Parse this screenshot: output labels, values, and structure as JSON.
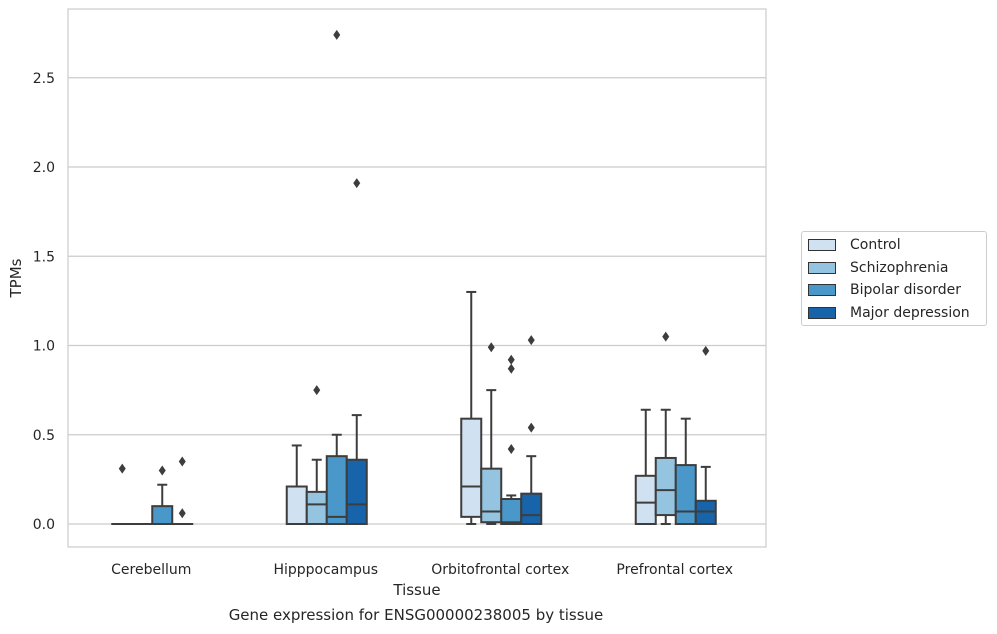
{
  "chart_data": {
    "type": "box",
    "title": "",
    "xlabel": "Tissue",
    "ylabel": "TPMs",
    "caption": "Gene expression for ENSG00000238005 by tissue",
    "ylim": [
      -0.13,
      2.88
    ],
    "yticks": [
      "0.0",
      "0.5",
      "1.0",
      "1.5",
      "2.0",
      "2.5"
    ],
    "ytick_values": [
      0,
      0.5,
      1.0,
      1.5,
      2.0,
      2.5
    ],
    "grid": "horizontal",
    "legend_position": "right",
    "categories": [
      "Cerebellum",
      "Hipppocampus",
      "Orbitofrontal cortex",
      "Prefrontal cortex"
    ],
    "series": [
      {
        "name": "Control",
        "color": "#d0e1f2",
        "boxes": [
          {
            "whislo": 0,
            "q1": 0,
            "med": 0,
            "q3": 0,
            "whishi": 0,
            "fliers": [
              0.31
            ]
          },
          {
            "whislo": 0,
            "q1": 0,
            "med": 0,
            "q3": 0.21,
            "whishi": 0.44,
            "fliers": []
          },
          {
            "whislo": 0,
            "q1": 0.04,
            "med": 0.21,
            "q3": 0.59,
            "whishi": 1.3,
            "fliers": []
          },
          {
            "whislo": 0,
            "q1": 0,
            "med": 0.12,
            "q3": 0.27,
            "whishi": 0.64,
            "fliers": []
          }
        ]
      },
      {
        "name": "Schizophrenia",
        "color": "#94c4df",
        "boxes": [
          {
            "whislo": 0,
            "q1": 0,
            "med": 0,
            "q3": 0,
            "whishi": 0,
            "fliers": []
          },
          {
            "whislo": 0,
            "q1": 0,
            "med": 0.11,
            "q3": 0.18,
            "whishi": 0.36,
            "fliers": [
              0.75
            ]
          },
          {
            "whislo": 0,
            "q1": 0.01,
            "med": 0.07,
            "q3": 0.31,
            "whishi": 0.75,
            "fliers": [
              0.99
            ]
          },
          {
            "whislo": 0,
            "q1": 0.05,
            "med": 0.19,
            "q3": 0.37,
            "whishi": 0.64,
            "fliers": [
              1.05
            ]
          }
        ]
      },
      {
        "name": "Bipolar disorder",
        "color": "#4a98c9",
        "boxes": [
          {
            "whislo": 0,
            "q1": 0,
            "med": 0,
            "q3": 0.1,
            "whishi": 0.22,
            "fliers": [
              0.3
            ]
          },
          {
            "whislo": 0,
            "q1": 0,
            "med": 0.04,
            "q3": 0.38,
            "whishi": 0.5,
            "fliers": [
              2.74
            ]
          },
          {
            "whislo": 0,
            "q1": 0,
            "med": 0.01,
            "q3": 0.14,
            "whishi": 0.16,
            "fliers": [
              0.42,
              0.87,
              0.92
            ]
          },
          {
            "whislo": 0,
            "q1": 0,
            "med": 0.07,
            "q3": 0.33,
            "whishi": 0.59,
            "fliers": []
          }
        ]
      },
      {
        "name": "Major depression",
        "color": "#1764ab",
        "boxes": [
          {
            "whislo": 0,
            "q1": 0,
            "med": 0,
            "q3": 0,
            "whishi": 0,
            "fliers": [
              0.06,
              0.35
            ]
          },
          {
            "whislo": 0,
            "q1": 0,
            "med": 0.11,
            "q3": 0.36,
            "whishi": 0.61,
            "fliers": [
              1.91
            ]
          },
          {
            "whislo": 0,
            "q1": 0,
            "med": 0.05,
            "q3": 0.17,
            "whishi": 0.38,
            "fliers": [
              0.54,
              1.03
            ]
          },
          {
            "whislo": 0,
            "q1": 0,
            "med": 0.07,
            "q3": 0.13,
            "whishi": 0.32,
            "fliers": [
              0.97
            ]
          }
        ]
      }
    ]
  }
}
